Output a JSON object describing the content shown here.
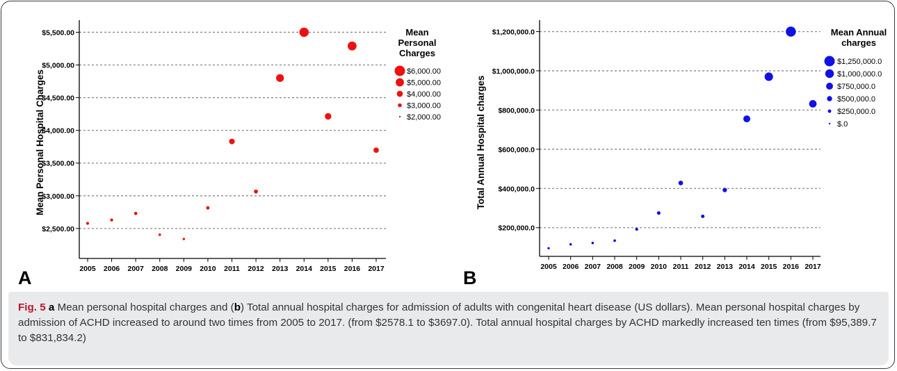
{
  "figure": {
    "panel_a_label": "A",
    "panel_b_label": "B",
    "caption": {
      "prefix": "Fig. 5",
      "part_a_letter": "a",
      "text1": " Mean personal hospital charges and (",
      "part_b_letter": "b",
      "text2": ") Total annual hospital charges for admission of adults with congenital heart disease (US dollars). Mean personal hospital charges by admission of ACHD increased to around two times from 2005 to 2017. (from $2578.1 to $3697.0). Total annual hospital charges by ACHD markedly increased ten times (from $95,389.7 to $831,834.2)"
    }
  },
  "colors": {
    "panel_a": "#ee1111",
    "panel_b": "#1111e6",
    "grid": "#888888"
  },
  "chart_data": [
    {
      "type": "scatter",
      "ylabel": "Mean Personal Hospital Charges",
      "xlabel": "",
      "categories": [
        "2005",
        "2006",
        "2007",
        "2008",
        "2009",
        "2010",
        "2011",
        "2012",
        "2013",
        "2014",
        "2015",
        "2016",
        "2017"
      ],
      "values": [
        2578.1,
        2630,
        2730,
        2405,
        2340,
        2815,
        3830,
        3065,
        4800,
        5500,
        4215,
        5290,
        3697.0
      ],
      "ylim": [
        2350,
        5600
      ],
      "yticks": [
        2500,
        3000,
        3500,
        4000,
        4500,
        5000,
        5500
      ],
      "ytick_labels": [
        "$2,500.00",
        "$3,000.00",
        "$3,500.00",
        "$4,000.00",
        "$4,500.00",
        "$5,000.00",
        "$5,500.00"
      ],
      "grid": true,
      "legend": {
        "title_lines": [
          "Mean",
          "Personal",
          "Charges"
        ],
        "entries": [
          {
            "label": "$6,000.00",
            "value": 6000
          },
          {
            "label": "$5,000.00",
            "value": 5000
          },
          {
            "label": "$4,000.00",
            "value": 4000
          },
          {
            "label": "$3,000.00",
            "value": 3000
          },
          {
            "label": "$2,000.00",
            "value": 2000
          }
        ]
      },
      "legend_position": "right"
    },
    {
      "type": "scatter",
      "ylabel": "Total Annual Hospital charges",
      "xlabel": "",
      "categories": [
        "2005",
        "2006",
        "2007",
        "2008",
        "2009",
        "2010",
        "2011",
        "2012",
        "2013",
        "2014",
        "2015",
        "2016",
        "2017"
      ],
      "values": [
        95389.7,
        115000,
        122000,
        134000,
        192000,
        275000,
        428000,
        258000,
        392000,
        755000,
        970000,
        1200000,
        831834.2
      ],
      "ylim": [
        75000,
        1230000
      ],
      "yticks": [
        200000,
        400000,
        600000,
        800000,
        1000000,
        1200000
      ],
      "ytick_labels": [
        "$200,000.0",
        "$400,000.0",
        "$600,000.0",
        "$800,000.0",
        "$1,000,000.0",
        "$1,200,000.0"
      ],
      "grid": true,
      "legend": {
        "title_lines": [
          "Mean Annual",
          "charges"
        ],
        "entries": [
          {
            "label": "$1,250,000.0",
            "value": 1250000
          },
          {
            "label": "$1,000,000.0",
            "value": 1000000
          },
          {
            "label": "$750,000.0",
            "value": 750000
          },
          {
            "label": "$500,000.0",
            "value": 500000
          },
          {
            "label": "$250,000.0",
            "value": 250000
          },
          {
            "label": "$.0",
            "value": 0
          }
        ]
      },
      "legend_position": "right"
    }
  ]
}
